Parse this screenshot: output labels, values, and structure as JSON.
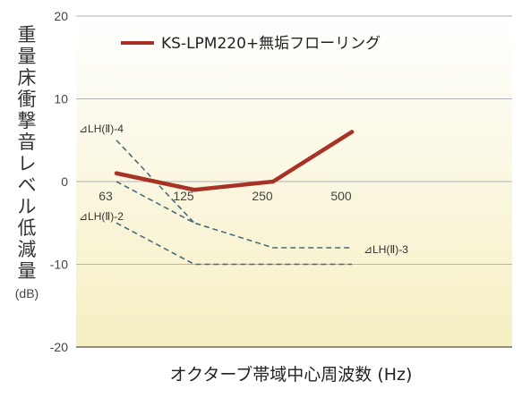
{
  "chart_data": {
    "type": "line",
    "categories": [
      "63",
      "125",
      "250",
      "500"
    ],
    "ylim": [
      -20,
      20
    ],
    "yticks": [
      "20",
      "10",
      "0",
      "-10",
      "-20"
    ],
    "y_axis_label": "重量床衝撃音レベル低減量",
    "y_axis_unit": "(dB)",
    "xlabel": "オクターブ帯域中心周波数 (Hz)",
    "legend_position": "top-right",
    "series": [
      {
        "name": "KS-LPM220+無垢フローリング",
        "color": "#a93226",
        "style": "solid",
        "values": [
          1,
          -1,
          0,
          6
        ]
      }
    ],
    "reference_lines": [
      {
        "label": "⊿LH(Ⅱ)-4",
        "color": "#4a6a7a",
        "style": "dashed",
        "values": [
          5,
          -5,
          null,
          null
        ]
      },
      {
        "label": "⊿LH(Ⅱ)-3",
        "color": "#4a6a7a",
        "style": "dashed",
        "values": [
          0,
          -5,
          -8,
          -8
        ]
      },
      {
        "label": "⊿LH(Ⅱ)-2",
        "color": "#4a6a7a",
        "style": "dashed",
        "values": [
          -5,
          -10,
          -10,
          -10
        ]
      }
    ]
  }
}
